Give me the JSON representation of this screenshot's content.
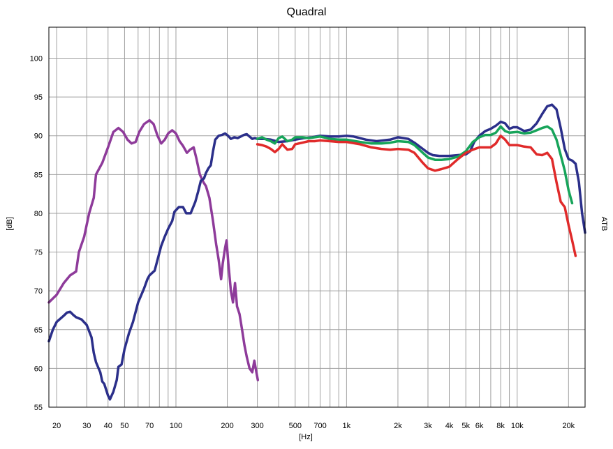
{
  "chart_data": {
    "type": "line",
    "title": "Quadral",
    "xlabel": "[Hz]",
    "ylabel": "[dB]",
    "right_label": "ATB",
    "x_scale": "log",
    "xlim": [
      18,
      25000
    ],
    "ylim": [
      55,
      104
    ],
    "grid": true,
    "x_ticks": [
      {
        "value": 20,
        "label": "20"
      },
      {
        "value": 30,
        "label": "30"
      },
      {
        "value": 40,
        "label": "40"
      },
      {
        "value": 50,
        "label": "50"
      },
      {
        "value": 70,
        "label": "70"
      },
      {
        "value": 100,
        "label": "100"
      },
      {
        "value": 200,
        "label": "200"
      },
      {
        "value": 300,
        "label": "300"
      },
      {
        "value": 500,
        "label": "500"
      },
      {
        "value": 700,
        "label": "700"
      },
      {
        "value": 1000,
        "label": "1k"
      },
      {
        "value": 2000,
        "label": "2k"
      },
      {
        "value": 3000,
        "label": "3k"
      },
      {
        "value": 4000,
        "label": "4k"
      },
      {
        "value": 5000,
        "label": "5k"
      },
      {
        "value": 6000,
        "label": "6k"
      },
      {
        "value": 8000,
        "label": "8k"
      },
      {
        "value": 10000,
        "label": "10k"
      },
      {
        "value": 20000,
        "label": "20k"
      }
    ],
    "y_ticks": [
      55,
      60,
      65,
      70,
      75,
      80,
      85,
      90,
      95,
      100
    ],
    "series": [
      {
        "color": "#8e3b9a",
        "points": [
          [
            18,
            68.5
          ],
          [
            20,
            69.5
          ],
          [
            22,
            71
          ],
          [
            24,
            72
          ],
          [
            26,
            72.5
          ],
          [
            27,
            75
          ],
          [
            29,
            77
          ],
          [
            31,
            80
          ],
          [
            33,
            82
          ],
          [
            34,
            85
          ],
          [
            37,
            86.5
          ],
          [
            40,
            88.5
          ],
          [
            43,
            90.5
          ],
          [
            46,
            91
          ],
          [
            49,
            90.5
          ],
          [
            52,
            89.5
          ],
          [
            55,
            89
          ],
          [
            58,
            89.2
          ],
          [
            61,
            90.5
          ],
          [
            65,
            91.5
          ],
          [
            70,
            92
          ],
          [
            74,
            91.5
          ],
          [
            78,
            90
          ],
          [
            82,
            89
          ],
          [
            86,
            89.5
          ],
          [
            90,
            90.3
          ],
          [
            95,
            90.7
          ],
          [
            100,
            90.3
          ],
          [
            105,
            89.3
          ],
          [
            110,
            88.7
          ],
          [
            116,
            87.8
          ],
          [
            121,
            88.2
          ],
          [
            127,
            88.5
          ],
          [
            132,
            87
          ],
          [
            138,
            85
          ],
          [
            145,
            84
          ],
          [
            150,
            83.5
          ],
          [
            157,
            82
          ],
          [
            165,
            79
          ],
          [
            172,
            76
          ],
          [
            178,
            74
          ],
          [
            184,
            71.5
          ],
          [
            188,
            73.5
          ],
          [
            194,
            75.5
          ],
          [
            198,
            76.5
          ],
          [
            203,
            73.5
          ],
          [
            210,
            70
          ],
          [
            216,
            68.5
          ],
          [
            222,
            71
          ],
          [
            228,
            68
          ],
          [
            236,
            67
          ],
          [
            244,
            65
          ],
          [
            252,
            63
          ],
          [
            260,
            61.5
          ],
          [
            270,
            60
          ],
          [
            280,
            59.5
          ],
          [
            288,
            61
          ],
          [
            296,
            59.5
          ],
          [
            302,
            58.5
          ]
        ]
      },
      {
        "color": "#2b2f8a",
        "points": [
          [
            18,
            63.5
          ],
          [
            19,
            65
          ],
          [
            20,
            66
          ],
          [
            22,
            66.8
          ],
          [
            23,
            67.2
          ],
          [
            24,
            67.3
          ],
          [
            25,
            66.9
          ],
          [
            26,
            66.6
          ],
          [
            28,
            66.3
          ],
          [
            30,
            65.6
          ],
          [
            32,
            64
          ],
          [
            33,
            62
          ],
          [
            34,
            60.8
          ],
          [
            36,
            59.5
          ],
          [
            37,
            58.3
          ],
          [
            38,
            58
          ],
          [
            40,
            56.5
          ],
          [
            41,
            56
          ],
          [
            43,
            57
          ],
          [
            45,
            58.5
          ],
          [
            46,
            60.2
          ],
          [
            48,
            60.5
          ],
          [
            50,
            62.5
          ],
          [
            53,
            64.5
          ],
          [
            56,
            66
          ],
          [
            60,
            68.5
          ],
          [
            65,
            70.3
          ],
          [
            68,
            71.5
          ],
          [
            70,
            72
          ],
          [
            75,
            72.6
          ],
          [
            78,
            74
          ],
          [
            82,
            75.8
          ],
          [
            86,
            77
          ],
          [
            90,
            78
          ],
          [
            95,
            79
          ],
          [
            98,
            80.2
          ],
          [
            104,
            80.8
          ],
          [
            110,
            80.8
          ],
          [
            115,
            80
          ],
          [
            122,
            80
          ],
          [
            130,
            81.5
          ],
          [
            135,
            82.8
          ],
          [
            140,
            84.2
          ],
          [
            146,
            84.5
          ],
          [
            150,
            85.2
          ],
          [
            155,
            85.8
          ],
          [
            160,
            86.2
          ],
          [
            165,
            88
          ],
          [
            170,
            89.5
          ],
          [
            178,
            90
          ],
          [
            186,
            90.1
          ],
          [
            194,
            90.3
          ],
          [
            202,
            90
          ],
          [
            210,
            89.6
          ],
          [
            220,
            89.8
          ],
          [
            230,
            89.7
          ],
          [
            240,
            89.9
          ],
          [
            250,
            90.1
          ],
          [
            260,
            90.2
          ],
          [
            270,
            89.9
          ],
          [
            280,
            89.6
          ],
          [
            290,
            89.7
          ],
          [
            300,
            89.6
          ],
          [
            330,
            89.6
          ],
          [
            360,
            89.5
          ],
          [
            400,
            89.2
          ],
          [
            450,
            89.3
          ],
          [
            500,
            89.5
          ],
          [
            560,
            89.7
          ],
          [
            630,
            89.8
          ],
          [
            700,
            90
          ],
          [
            800,
            89.9
          ],
          [
            900,
            89.9
          ],
          [
            1000,
            90
          ],
          [
            1100,
            89.9
          ],
          [
            1300,
            89.5
          ],
          [
            1500,
            89.3
          ],
          [
            1800,
            89.5
          ],
          [
            2000,
            89.8
          ],
          [
            2300,
            89.6
          ],
          [
            2500,
            89.1
          ],
          [
            2800,
            88.3
          ],
          [
            3000,
            87.8
          ],
          [
            3200,
            87.5
          ],
          [
            3500,
            87.4
          ],
          [
            4000,
            87.4
          ],
          [
            4500,
            87.5
          ],
          [
            5000,
            87.6
          ],
          [
            5300,
            88
          ],
          [
            5600,
            89.2
          ],
          [
            6000,
            90
          ],
          [
            6500,
            90.6
          ],
          [
            7000,
            90.9
          ],
          [
            7500,
            91.3
          ],
          [
            8000,
            91.8
          ],
          [
            8500,
            91.6
          ],
          [
            9000,
            90.9
          ],
          [
            9500,
            91.1
          ],
          [
            10000,
            91.1
          ],
          [
            11000,
            90.6
          ],
          [
            12000,
            90.8
          ],
          [
            13000,
            91.6
          ],
          [
            14000,
            92.8
          ],
          [
            15000,
            93.8
          ],
          [
            16000,
            94
          ],
          [
            17000,
            93.4
          ],
          [
            18000,
            91
          ],
          [
            19000,
            88.3
          ],
          [
            20000,
            87
          ],
          [
            21000,
            86.8
          ],
          [
            22000,
            86.4
          ],
          [
            23000,
            84
          ],
          [
            24000,
            80
          ],
          [
            25000,
            77.5
          ]
        ]
      },
      {
        "color": "#17a45a",
        "points": [
          [
            300,
            89.6
          ],
          [
            320,
            89.8
          ],
          [
            340,
            89.5
          ],
          [
            360,
            89.3
          ],
          [
            380,
            89
          ],
          [
            400,
            89.7
          ],
          [
            420,
            89.9
          ],
          [
            450,
            89.3
          ],
          [
            480,
            89.5
          ],
          [
            500,
            89.8
          ],
          [
            550,
            89.8
          ],
          [
            600,
            89.7
          ],
          [
            650,
            89.8
          ],
          [
            700,
            89.9
          ],
          [
            800,
            89.6
          ],
          [
            900,
            89.5
          ],
          [
            1000,
            89.5
          ],
          [
            1200,
            89.2
          ],
          [
            1400,
            89
          ],
          [
            1600,
            89
          ],
          [
            1800,
            89.1
          ],
          [
            2000,
            89.3
          ],
          [
            2300,
            89.2
          ],
          [
            2500,
            88.8
          ],
          [
            2800,
            87.8
          ],
          [
            3000,
            87.2
          ],
          [
            3300,
            86.9
          ],
          [
            3600,
            86.9
          ],
          [
            4000,
            87
          ],
          [
            4500,
            87.3
          ],
          [
            5000,
            88
          ],
          [
            5500,
            89.2
          ],
          [
            6000,
            89.8
          ],
          [
            6500,
            90.1
          ],
          [
            7000,
            90.1
          ],
          [
            7500,
            90.4
          ],
          [
            8000,
            91.2
          ],
          [
            8500,
            90.6
          ],
          [
            9000,
            90.4
          ],
          [
            10000,
            90.5
          ],
          [
            11000,
            90.3
          ],
          [
            12000,
            90.4
          ],
          [
            13000,
            90.7
          ],
          [
            14000,
            91
          ],
          [
            15000,
            91.2
          ],
          [
            16000,
            90.8
          ],
          [
            17000,
            89.5
          ],
          [
            18000,
            87.5
          ],
          [
            19000,
            85.5
          ],
          [
            20000,
            83
          ],
          [
            21000,
            81.3
          ]
        ]
      },
      {
        "color": "#e02a2a",
        "points": [
          [
            300,
            88.9
          ],
          [
            320,
            88.8
          ],
          [
            340,
            88.6
          ],
          [
            360,
            88.3
          ],
          [
            380,
            87.9
          ],
          [
            400,
            88.3
          ],
          [
            420,
            88.9
          ],
          [
            450,
            88.2
          ],
          [
            480,
            88.3
          ],
          [
            500,
            88.9
          ],
          [
            550,
            89.1
          ],
          [
            600,
            89.3
          ],
          [
            650,
            89.3
          ],
          [
            700,
            89.4
          ],
          [
            800,
            89.3
          ],
          [
            900,
            89.2
          ],
          [
            1000,
            89.2
          ],
          [
            1200,
            88.9
          ],
          [
            1400,
            88.5
          ],
          [
            1600,
            88.3
          ],
          [
            1800,
            88.2
          ],
          [
            2000,
            88.3
          ],
          [
            2300,
            88.2
          ],
          [
            2500,
            87.8
          ],
          [
            2800,
            86.5
          ],
          [
            3000,
            85.8
          ],
          [
            3300,
            85.5
          ],
          [
            3600,
            85.7
          ],
          [
            4000,
            86
          ],
          [
            4500,
            87
          ],
          [
            5000,
            87.8
          ],
          [
            5500,
            88.2
          ],
          [
            6000,
            88.5
          ],
          [
            6500,
            88.5
          ],
          [
            7000,
            88.5
          ],
          [
            7500,
            89
          ],
          [
            8000,
            90
          ],
          [
            8500,
            89.5
          ],
          [
            9000,
            88.8
          ],
          [
            10000,
            88.8
          ],
          [
            11000,
            88.6
          ],
          [
            12000,
            88.5
          ],
          [
            13000,
            87.6
          ],
          [
            14000,
            87.5
          ],
          [
            15000,
            87.8
          ],
          [
            16000,
            87
          ],
          [
            17000,
            84
          ],
          [
            18000,
            81.5
          ],
          [
            19000,
            80.8
          ],
          [
            20000,
            78.5
          ],
          [
            21000,
            76.5
          ],
          [
            22000,
            74.5
          ]
        ]
      }
    ]
  }
}
